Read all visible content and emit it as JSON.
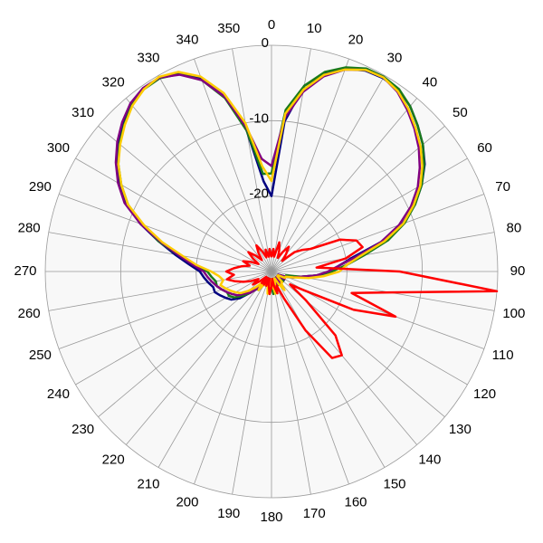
{
  "chart_data": {
    "type": "polar",
    "theta": [
      0,
      5,
      10,
      15,
      20,
      25,
      30,
      35,
      40,
      45,
      50,
      55,
      60,
      65,
      70,
      75,
      80,
      85,
      90,
      95,
      100,
      105,
      110,
      115,
      120,
      125,
      130,
      135,
      140,
      145,
      150,
      155,
      160,
      165,
      170,
      175,
      180,
      185,
      190,
      195,
      200,
      205,
      210,
      215,
      220,
      225,
      230,
      235,
      240,
      245,
      250,
      255,
      260,
      265,
      270,
      275,
      280,
      285,
      290,
      295,
      300,
      305,
      310,
      315,
      320,
      325,
      330,
      335,
      340,
      345,
      350,
      355
    ],
    "thetaticks": [
      0,
      10,
      20,
      30,
      40,
      50,
      60,
      70,
      80,
      90,
      100,
      110,
      120,
      130,
      140,
      150,
      160,
      170,
      180,
      190,
      200,
      210,
      220,
      230,
      240,
      250,
      260,
      270,
      280,
      290,
      300,
      310,
      320,
      330,
      340,
      350
    ],
    "rlim": [
      -30,
      0
    ],
    "rticks": [
      -20,
      -10,
      0
    ],
    "grid": true,
    "series": [
      {
        "color": "#000080",
        "values": [
          -20,
          -10,
          -5,
          -2.8,
          -1.4,
          -0.6,
          -0.4,
          -0.6,
          -1.4,
          -2.6,
          -3.8,
          -5.2,
          -7,
          -9,
          -11.5,
          -15,
          -19,
          -21,
          -22,
          -24,
          -26,
          -27,
          -28,
          -29,
          -29,
          -28,
          -29,
          -29,
          -28,
          -28,
          -29,
          -28,
          -29,
          -29,
          -28,
          -28,
          -29,
          -29,
          -28,
          -28,
          -29,
          -29,
          -28,
          -28,
          -27,
          -26,
          -24.5,
          -23.5,
          -23,
          -22.5,
          -22,
          -22,
          -21.5,
          -21,
          -20.5,
          -19,
          -17,
          -14.5,
          -11.5,
          -8.8,
          -6.8,
          -5,
          -3.5,
          -2.2,
          -1.1,
          -0.4,
          -0.3,
          -1,
          -2.8,
          -6,
          -11,
          -18
        ]
      },
      {
        "color": "#1a7a1a",
        "values": [
          -17,
          -8.5,
          -5,
          -2.6,
          -1.2,
          -0.3,
          -0.2,
          -0.5,
          -1.4,
          -2.6,
          -3.8,
          -5.3,
          -7,
          -9,
          -11.2,
          -14,
          -17.5,
          -20,
          -22,
          -24,
          -26,
          -28,
          -28,
          -29,
          -29,
          -29,
          -28,
          -28,
          -29,
          -29,
          -28,
          -28,
          -29,
          -29,
          -28,
          -27,
          -28,
          -29,
          -29,
          -28,
          -28,
          -29,
          -28,
          -27,
          -27,
          -26,
          -25,
          -24,
          -23.5,
          -23.5,
          -23,
          -22.5,
          -22.5,
          -22,
          -21.5,
          -19.5,
          -17.5,
          -14.5,
          -11.8,
          -9,
          -7,
          -5.2,
          -3.7,
          -2.4,
          -1.2,
          -0.5,
          -0.4,
          -1.1,
          -3,
          -6.2,
          -11,
          -17
        ]
      },
      {
        "color": "#800080",
        "values": [
          -16,
          -9.5,
          -5.8,
          -3.2,
          -1.5,
          -0.5,
          -0.3,
          -0.9,
          -2,
          -3.2,
          -4.5,
          -6,
          -7.6,
          -9.6,
          -12,
          -15,
          -18.5,
          -21,
          -22.5,
          -24,
          -26,
          -27,
          -28,
          -29,
          -28,
          -29,
          -29,
          -28,
          -29,
          -28,
          -28,
          -29,
          -28,
          -29,
          -29,
          -28,
          -28,
          -29,
          -28,
          -29,
          -28,
          -28,
          -29,
          -28,
          -27,
          -26,
          -25.5,
          -24.5,
          -24,
          -23.5,
          -23,
          -22.5,
          -22,
          -21.5,
          -21,
          -19.5,
          -17.5,
          -14.8,
          -11.5,
          -8.5,
          -6.5,
          -4.8,
          -3.3,
          -2,
          -0.9,
          -0.3,
          -0.3,
          -1.2,
          -3,
          -6,
          -10.5,
          -15
        ]
      },
      {
        "color": "#ffcc00",
        "values": [
          -18,
          -9,
          -5.5,
          -3,
          -1.5,
          -0.5,
          -0.3,
          -0.8,
          -1.8,
          -3,
          -4.2,
          -5.6,
          -7.2,
          -9.2,
          -11.4,
          -14.5,
          -18,
          -20,
          -21,
          -23,
          -25,
          -27,
          -28,
          -28,
          -29,
          -29,
          -29,
          -28,
          -28,
          -27,
          -28,
          -29,
          -29,
          -28,
          -27,
          -28,
          -29,
          -28,
          -27,
          -28,
          -29,
          -28,
          -28,
          -27,
          -28,
          -27,
          -26,
          -25,
          -24.5,
          -24,
          -23.5,
          -23,
          -23.5,
          -23,
          -22,
          -20,
          -18,
          -15,
          -12,
          -9,
          -7,
          -5.2,
          -3.8,
          -2.5,
          -1.3,
          -0.5,
          -0.2,
          -0.8,
          -2.5,
          -5.5,
          -10,
          -16
        ]
      },
      {
        "color": "#ff0000",
        "values": [
          -28,
          -27,
          -28,
          -26,
          -27,
          -28,
          -27,
          -26,
          -27,
          -28,
          -26,
          -25,
          -24,
          -20,
          -18,
          -17.5,
          -20,
          -24,
          -13,
          0,
          -14,
          -19,
          -12.5,
          -18,
          -25,
          -27,
          -24,
          -18,
          -15.5,
          -16,
          -21,
          -26,
          -28,
          -27,
          -28,
          -29,
          -28,
          -27,
          -28,
          -29,
          -28,
          -29,
          -28,
          -29,
          -28,
          -29,
          -28,
          -27,
          -28,
          -27,
          -26,
          -25,
          -24,
          -25,
          -24,
          -25,
          -26,
          -27,
          -26,
          -27,
          -28,
          -27,
          -26,
          -27,
          -28,
          -27,
          -26,
          -27,
          -28,
          -27,
          -28,
          -27
        ]
      }
    ]
  }
}
